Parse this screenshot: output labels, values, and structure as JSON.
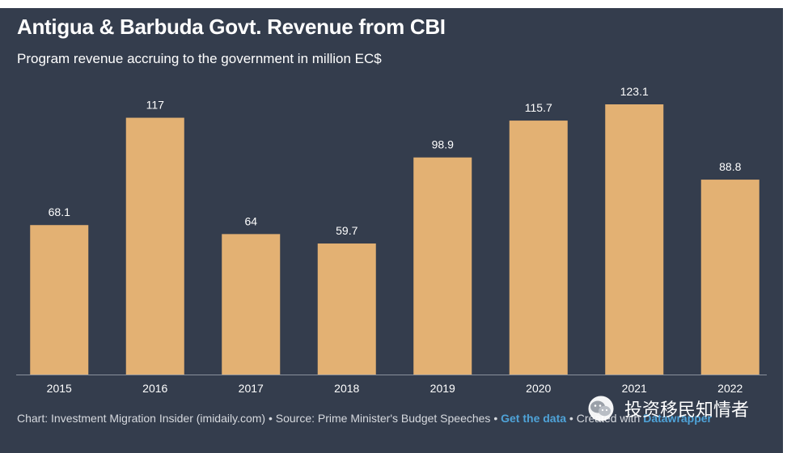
{
  "chart_data": {
    "type": "bar",
    "title": "Antigua & Barbuda Govt. Revenue from CBI",
    "subtitle": "Program revenue accruing to the government in million EC$",
    "categories": [
      "2015",
      "2016",
      "2017",
      "2018",
      "2019",
      "2020",
      "2021",
      "2022"
    ],
    "values": [
      68.1,
      117,
      64,
      59.7,
      98.9,
      115.7,
      123.1,
      88.8
    ],
    "value_labels": [
      "68.1",
      "117",
      "64",
      "59.7",
      "98.9",
      "115.7",
      "123.1",
      "88.8"
    ],
    "ylim": [
      0,
      123.1
    ],
    "bar_color": "#e3b173",
    "grid": false,
    "legend": "none"
  },
  "footer": {
    "chart_credit": "Chart: Investment Migration Insider (imidaily.com)",
    "separator": " • ",
    "source": "Source: Prime Minister's Budget Speeches",
    "get_data": "Get the data",
    "created_with": "Created with",
    "tool": "Datawrapper"
  },
  "watermark": {
    "text": "投资移民知情者",
    "icon": "wechat-logo-icon"
  },
  "colors": {
    "background": "#343d4d",
    "text": "#ffffff",
    "link": "#4fa3d8"
  }
}
